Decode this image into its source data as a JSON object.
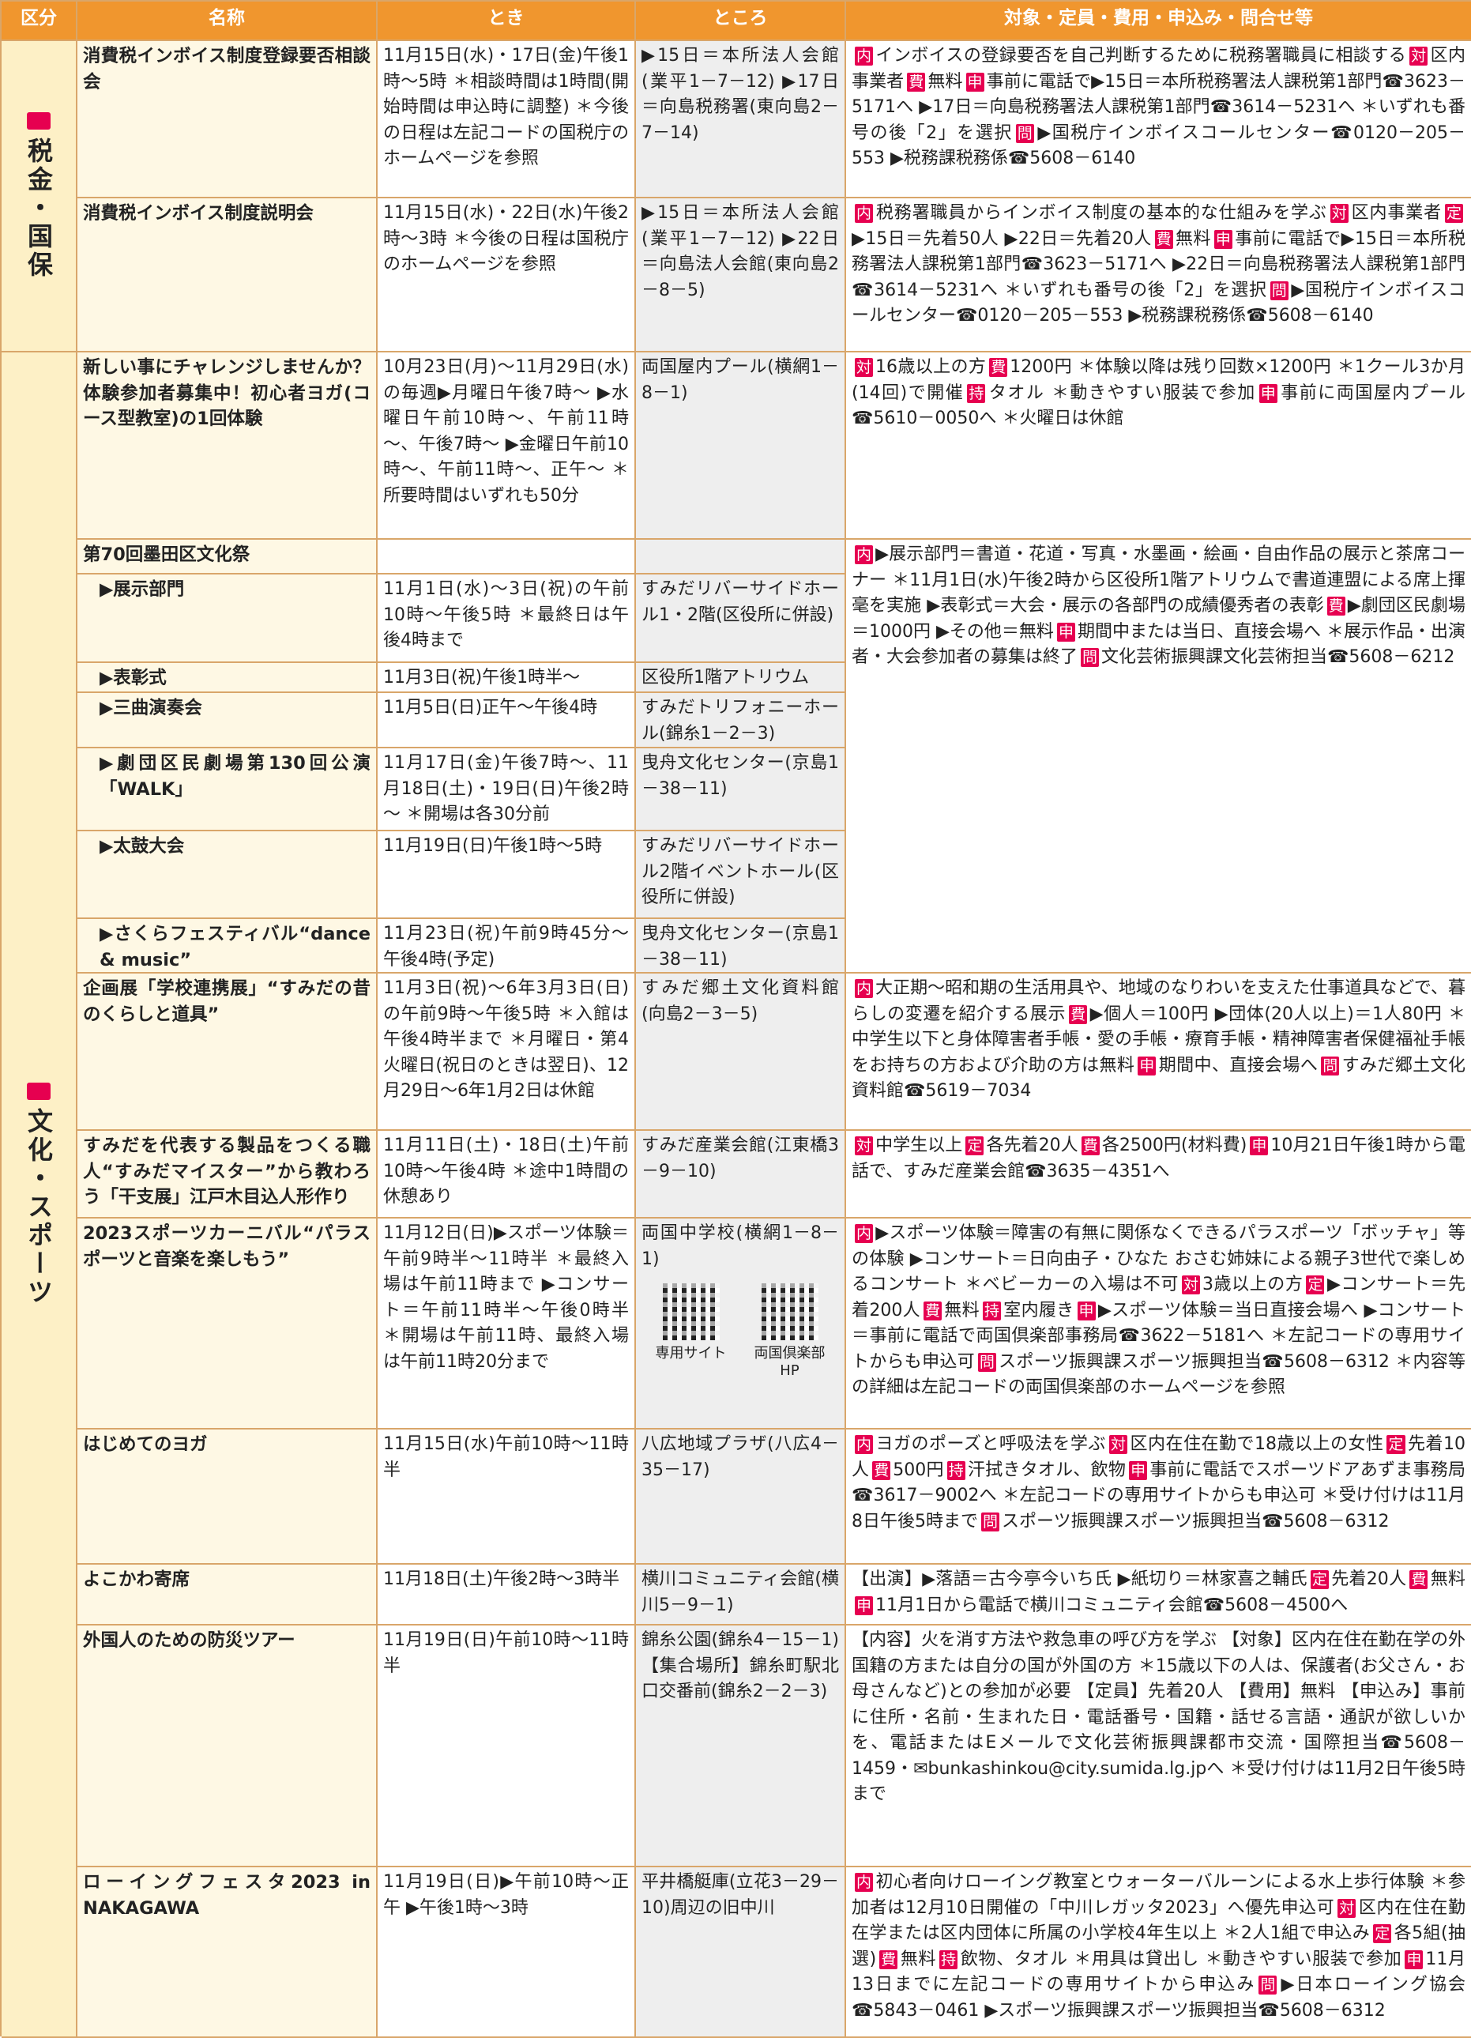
{
  "header": [
    "区分",
    "名称",
    "とき",
    "ところ",
    "対象・定員・費用・申込み・問合せ等"
  ],
  "sections": [
    {
      "category": "税金・国保",
      "rows": [
        {
          "name": "消費税インボイス制度登録要否相談会",
          "time": "11月15日(水)・17日(金)午後1時～5時 ＊相談時間は1時間(開始時間は申込時に調整) ＊今後の日程は左記コードの国税庁のホームページを参照",
          "place": "▶15日＝本所法人会館(業平1－7－12) ▶17日＝向島税務署(東向島2－7－14)",
          "details": [
            {
              "badge": "内",
              "text": "インボイスの登録要否を自己判断するために税務署職員に相談する"
            },
            {
              "badge": "対",
              "text": "区内事業者"
            },
            {
              "badge": "費",
              "text": "無料"
            },
            {
              "badge": "申",
              "text": "事前に電話で▶15日＝本所税務署法人課税第1部門☎3623－5171へ ▶17日＝向島税務署法人課税第1部門☎3614－5231へ ＊いずれも番号の後「2」を選択"
            },
            {
              "badge": "問",
              "text": "▶国税庁インボイスコールセンター☎0120－205－553 ▶税務課税務係☎5608－6140"
            }
          ]
        },
        {
          "name": "消費税インボイス制度説明会",
          "time": "11月15日(水)・22日(水)午後2時～3時 ＊今後の日程は国税庁のホームページを参照",
          "place": "▶15日＝本所法人会館(業平1－7－12) ▶22日＝向島法人会館(東向島2－8－5)",
          "details": [
            {
              "badge": "内",
              "text": "税務署職員からインボイス制度の基本的な仕組みを学ぶ"
            },
            {
              "badge": "対",
              "text": "区内事業者"
            },
            {
              "badge": "定",
              "text": "▶15日＝先着50人 ▶22日＝先着20人"
            },
            {
              "badge": "費",
              "text": "無料"
            },
            {
              "badge": "申",
              "text": "事前に電話で▶15日＝本所税務署法人課税第1部門☎3623－5171へ ▶22日＝向島税務署法人課税第1部門☎3614－5231へ ＊いずれも番号の後「2」を選択"
            },
            {
              "badge": "問",
              "text": "▶国税庁インボイスコールセンター☎0120－205－553 ▶税務課税務係☎5608－6140"
            }
          ]
        }
      ]
    },
    {
      "category": "文化・スポーツ",
      "rows": [
        {
          "name": "新しい事にチャレンジしませんか？体験参加者募集中！初心者ヨガ(コース型教室)の1回体験",
          "time": "10月23日(月)～11月29日(水)の毎週▶月曜日午後7時～ ▶水曜日午前10時～、午前11時～、午後7時～ ▶金曜日午前10時～、午前11時～、正午～ ＊所要時間はいずれも50分",
          "place": "両国屋内プール(横網1－8－1)",
          "details": [
            {
              "badge": "対",
              "text": "16歳以上の方"
            },
            {
              "badge": "費",
              "text": "1200円 ＊体験以降は残り回数×1200円 ＊1クール3か月(14回)で開催"
            },
            {
              "badge": "持",
              "text": "タオル ＊動きやすい服装で参加"
            },
            {
              "badge": "申",
              "text": "事前に両国屋内プール☎5610－0050へ ＊火曜日は休館"
            }
          ]
        },
        {
          "name": "第70回墨田区文化祭",
          "details": [
            {
              "badge": "内",
              "text": "▶展示部門＝書道・花道・写真・水墨画・絵画・自由作品の展示と茶席コーナー ＊11月1日(水)午後2時から区役所1階アトリウムで書道連盟による席上揮毫を実施 ▶表彰式＝大会・展示の各部門の成績優秀者の表彰"
            },
            {
              "badge": "費",
              "text": "▶劇団区民劇場＝1000円 ▶その他＝無料"
            },
            {
              "badge": "申",
              "text": "期間中または当日、直接会場へ ＊展示作品・出演者・大会参加者の募集は終了"
            },
            {
              "badge": "問",
              "text": "文化芸術振興課文化芸術担当☎5608－6212"
            }
          ],
          "subitems": [
            {
              "name": "▶展示部門",
              "time": "11月1日(水)～3日(祝)の午前10時～午後5時 ＊最終日は午後4時まで",
              "place": "すみだリバーサイドホール1・2階(区役所に併設)"
            },
            {
              "name": "▶表彰式",
              "time": "11月3日(祝)午後1時半～",
              "place": "区役所1階アトリウム"
            },
            {
              "name": "▶三曲演奏会",
              "time": "11月5日(日)正午～午後4時",
              "place": "すみだトリフォニーホール(錦糸1－2－3)"
            },
            {
              "name": "▶劇団区民劇場第130回公演「WALK」",
              "time": "11月17日(金)午後7時～、11月18日(土)・19日(日)午後2時～ ＊開場は各30分前",
              "place": "曳舟文化センター(京島1－38－11)"
            },
            {
              "name": "▶太鼓大会",
              "time": "11月19日(日)午後1時～5時",
              "place": "すみだリバーサイドホール2階イベントホール(区役所に併設)"
            },
            {
              "name": "▶さくらフェスティバル“dance & music”",
              "time": "11月23日(祝)午前9時45分～午後4時(予定)",
              "place": "曳舟文化センター(京島1－38－11)"
            }
          ]
        },
        {
          "name": "企画展「学校連携展」“すみだの昔のくらしと道具”",
          "time": "11月3日(祝)～6年3月3日(日)の午前9時～午後5時 ＊入館は午後4時半まで ＊月曜日・第4火曜日(祝日のときは翌日)、12月29日～6年1月2日は休館",
          "place": "すみだ郷土文化資料館(向島2－3－5)",
          "details": [
            {
              "badge": "内",
              "text": "大正期～昭和期の生活用具や、地域のなりわいを支えた仕事道具などで、暮らしの変遷を紹介する展示"
            },
            {
              "badge": "費",
              "text": "▶個人＝100円 ▶団体(20人以上)＝1人80円 ＊中学生以下と身体障害者手帳・愛の手帳・療育手帳・精神障害者保健福祉手帳をお持ちの方および介助の方は無料"
            },
            {
              "badge": "申",
              "text": "期間中、直接会場へ"
            },
            {
              "badge": "問",
              "text": "すみだ郷土文化資料館☎5619－7034"
            }
          ]
        },
        {
          "name": "すみだを代表する製品をつくる職人“すみだマイスター”から教わろう「干支展」江戸木目込人形作り",
          "time": "11月11日(土)・18日(土)午前10時～午後4時 ＊途中1時間の休憩あり",
          "place": "すみだ産業会館(江東橋3－9－10)",
          "details": [
            {
              "badge": "対",
              "text": "中学生以上"
            },
            {
              "badge": "定",
              "text": "各先着20人"
            },
            {
              "badge": "費",
              "text": "各2500円(材料費)"
            },
            {
              "badge": "申",
              "text": "10月21日午後1時から電話で、すみだ産業会館☎3635－4351へ"
            }
          ]
        },
        {
          "name": "2023スポーツカーニバル“パラスポーツと音楽を楽しもう”",
          "time": "11月12日(日)▶スポーツ体験＝午前9時半～11時半 ＊最終入場は午前11時まで ▶コンサート＝午前11時半～午後0時半 ＊開場は午前11時、最終入場は午前11時20分まで",
          "place": "両国中学校(横網1－8－1)",
          "qr_labels": [
            "専用サイト",
            "両国倶楽部HP"
          ],
          "details": [
            {
              "badge": "内",
              "text": "▶スポーツ体験＝障害の有無に関係なくできるパラスポーツ「ボッチャ」等の体験 ▶コンサート＝日向由子・ひなた おさむ姉妹による親子3世代で楽しめるコンサート ＊ベビーカーの入場は不可"
            },
            {
              "badge": "対",
              "text": "3歳以上の方"
            },
            {
              "badge": "定",
              "text": "▶コンサート＝先着200人"
            },
            {
              "badge": "費",
              "text": "無料"
            },
            {
              "badge": "持",
              "text": "室内履き"
            },
            {
              "badge": "申",
              "text": "▶スポーツ体験＝当日直接会場へ ▶コンサート＝事前に電話で両国倶楽部事務局☎3622－5181へ ＊左記コードの専用サイトからも申込可"
            },
            {
              "badge": "問",
              "text": "スポーツ振興課スポーツ振興担当☎5608－6312 ＊内容等の詳細は左記コードの両国倶楽部のホームページを参照"
            }
          ]
        },
        {
          "name": "はじめてのヨガ",
          "time": "11月15日(水)午前10時～11時半",
          "place": "八広地域プラザ(八広4－35－17)",
          "details": [
            {
              "badge": "内",
              "text": "ヨガのポーズと呼吸法を学ぶ"
            },
            {
              "badge": "対",
              "text": "区内在住在勤で18歳以上の女性"
            },
            {
              "badge": "定",
              "text": "先着10人"
            },
            {
              "badge": "費",
              "text": "500円"
            },
            {
              "badge": "持",
              "text": "汗拭きタオル、飲物"
            },
            {
              "badge": "申",
              "text": "事前に電話でスポーツドアあずま事務局☎3617－9002へ ＊左記コードの専用サイトからも申込可 ＊受け付けは11月8日午後5時まで"
            },
            {
              "badge": "問",
              "text": "スポーツ振興課スポーツ振興担当☎5608－6312"
            }
          ]
        },
        {
          "name": "よこかわ寄席",
          "time": "11月18日(土)午後2時～3時半",
          "place": "横川コミュニティ会館(横川5－9－1)",
          "details": [
            {
              "text": "【出演】▶落語＝古今亭今いち氏 ▶紙切り＝林家喜之輔氏"
            },
            {
              "badge": "定",
              "text": "先着20人"
            },
            {
              "badge": "費",
              "text": "無料"
            },
            {
              "badge": "申",
              "text": "11月1日から電話で横川コミュニティ会館☎5608－4500へ"
            }
          ]
        },
        {
          "name": "外国人のための防災ツアー",
          "time": "11月19日(日)午前10時～11時半",
          "place": "錦糸公園(錦糸4－15－1)【集合場所】錦糸町駅北口交番前(錦糸2－2－3)",
          "details": [
            {
              "text": "【内容】火を消す方法や救急車の呼び方を学ぶ 【対象】区内在住在勤在学の外国籍の方または自分の国が外国の方 ＊15歳以下の人は、保護者(お父さん・お母さんなど)との参加が必要 【定員】先着20人 【費用】無料 【申込み】事前に住所・名前・生まれた日・電話番号・国籍・話せる言語・通訳が欲しいかを、電話またはEメールで文化芸術振興課都市交流・国際担当☎5608－1459・✉bunkashinkou@city.sumida.lg.jpへ ＊受け付けは11月2日午後5時まで"
            }
          ]
        },
        {
          "name": "ローイングフェスタ2023 in NAKAGAWA",
          "time": "11月19日(日)▶午前10時～正午 ▶午後1時～3時",
          "place": "平井橋艇庫(立花3－29－10)周辺の旧中川",
          "details": [
            {
              "badge": "内",
              "text": "初心者向けローイング教室とウォーターバルーンによる水上歩行体験 ＊参加者は12月10日開催の「中川レガッタ2023」へ優先申込可"
            },
            {
              "badge": "対",
              "text": "区内在住在勤在学または区内団体に所属の小学校4年生以上 ＊2人1組で申込み"
            },
            {
              "badge": "定",
              "text": "各5組(抽選)"
            },
            {
              "badge": "費",
              "text": "無料"
            },
            {
              "badge": "持",
              "text": "飲物、タオル ＊用具は貸出し ＊動きやすい服装で参加"
            },
            {
              "badge": "申",
              "text": "11月13日までに左記コードの専用サイトから申込み"
            },
            {
              "badge": "問",
              "text": "▶日本ローイング協会☎5843－0461 ▶スポーツ振興課スポーツ振興担当☎5608－6312"
            }
          ]
        }
      ]
    }
  ]
}
